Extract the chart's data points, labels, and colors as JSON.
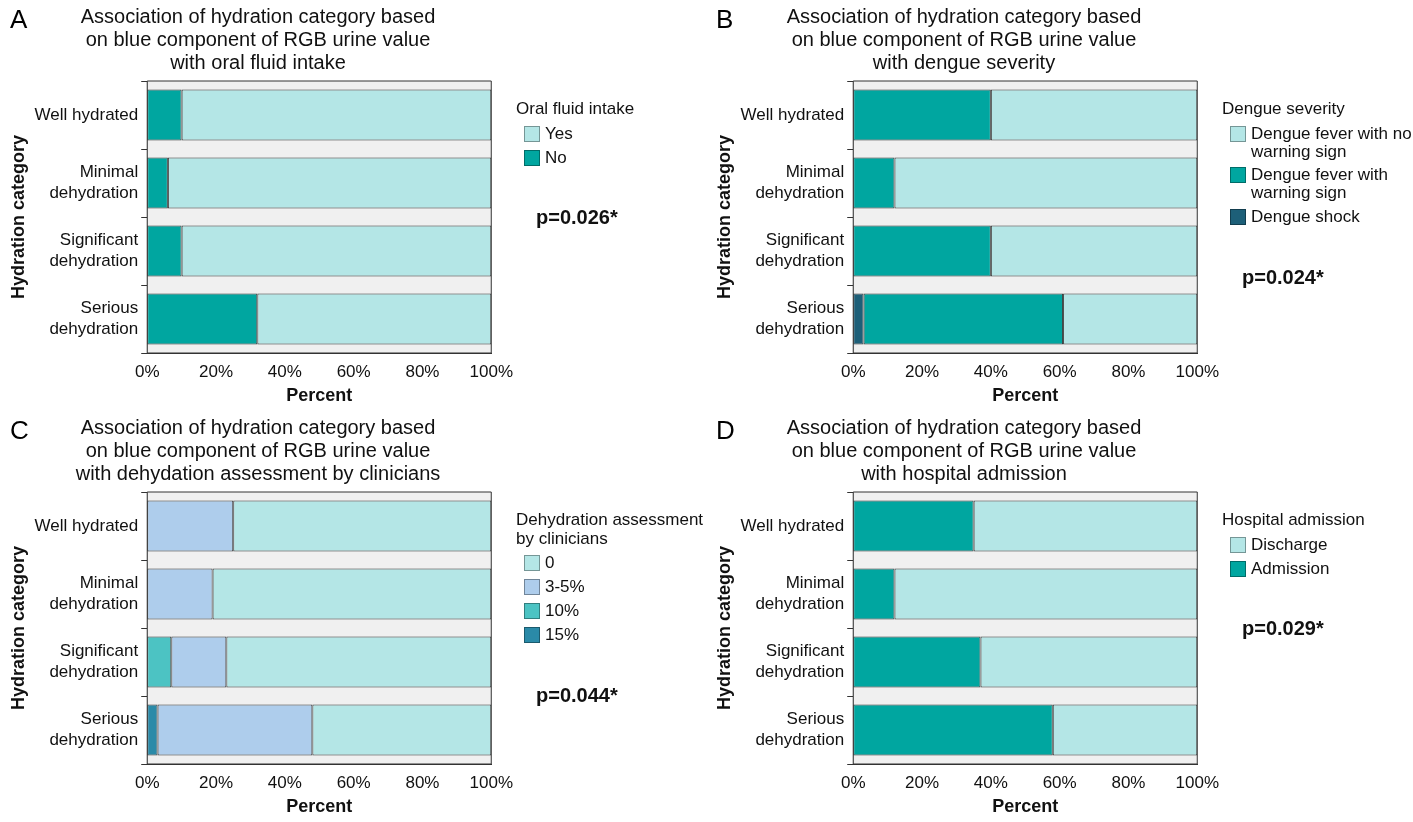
{
  "chart_data": [
    {
      "type": "bar",
      "title": "Association of hydration category based on blue component of RGB urine value with oral fluid intake",
      "xlabel": "Percent",
      "ylabel": "Hydration category",
      "legend_title": "Oral fluid intake",
      "annotations": [
        "A",
        "p=0.026*"
      ],
      "categories": [
        "Well hydrated",
        "Minimal dehydration",
        "Significant dehydration",
        "Serious dehydration"
      ],
      "series": [
        {
          "name": "No",
          "color": "#00a6a0",
          "values": [
            10,
            6,
            10,
            32
          ]
        },
        {
          "name": "Yes",
          "color": "#b4e6e6",
          "values": [
            90,
            94,
            90,
            68
          ]
        }
      ],
      "stacked": true,
      "orientation": "horizontal",
      "xlim": [
        0,
        100
      ],
      "xticks": [
        {
          "value": 0,
          "label": "0%"
        },
        {
          "value": 20,
          "label": "20%"
        },
        {
          "value": 40,
          "label": "40%"
        },
        {
          "value": 60,
          "label": "60%"
        },
        {
          "value": 80,
          "label": "80%"
        },
        {
          "value": 100,
          "label": "100%"
        }
      ],
      "grid": false,
      "legend": "right"
    },
    {
      "type": "bar",
      "title": "Association of hydration category based on blue component of RGB urine value with dengue severity",
      "xlabel": "Percent",
      "ylabel": "Hydration category",
      "legend_title": "Dengue severity",
      "annotations": [
        "B",
        "p=0.024*"
      ],
      "categories": [
        "Well hydrated",
        "Minimal dehydration",
        "Significant dehydration",
        "Serious dehydration"
      ],
      "series": [
        {
          "name": "Dengue shock",
          "color": "#1d5f78",
          "values": [
            0,
            0,
            0,
            3
          ]
        },
        {
          "name": "Dengue fever with warning sign",
          "color": "#00a6a0",
          "values": [
            40,
            12,
            40,
            58
          ]
        },
        {
          "name": "Dengue fever with no warning sign",
          "color": "#b4e6e6",
          "values": [
            60,
            88,
            60,
            39
          ]
        }
      ],
      "stacked": true,
      "orientation": "horizontal",
      "xlim": [
        0,
        100
      ],
      "xticks": [
        {
          "value": 0,
          "label": "0%"
        },
        {
          "value": 20,
          "label": "20%"
        },
        {
          "value": 40,
          "label": "40%"
        },
        {
          "value": 60,
          "label": "60%"
        },
        {
          "value": 80,
          "label": "80%"
        },
        {
          "value": 100,
          "label": "100%"
        }
      ],
      "grid": false,
      "legend": "right"
    },
    {
      "type": "bar",
      "title": "Association of hydration category based on blue component of RGB urine value with dehydation assessment by clinicians",
      "xlabel": "Percent",
      "ylabel": "Hydration category",
      "legend_title": "Dehydration assessment by clinicians",
      "annotations": [
        "C",
        "p=0.044*"
      ],
      "categories": [
        "Well hydrated",
        "Minimal dehydration",
        "Significant dehydration",
        "Serious dehydration"
      ],
      "series": [
        {
          "name": "15%",
          "color": "#2a8aa8",
          "values": [
            0,
            0,
            0,
            3
          ]
        },
        {
          "name": "10%",
          "color": "#4cc3c3",
          "values": [
            0,
            0,
            7,
            0
          ]
        },
        {
          "name": "3-5%",
          "color": "#aecdec",
          "values": [
            25,
            19,
            16,
            45
          ]
        },
        {
          "name": "0",
          "color": "#b4e6e6",
          "values": [
            75,
            81,
            77,
            52
          ]
        }
      ],
      "stacked": true,
      "orientation": "horizontal",
      "xlim": [
        0,
        100
      ],
      "xticks": [
        {
          "value": 0,
          "label": "0%"
        },
        {
          "value": 20,
          "label": "20%"
        },
        {
          "value": 40,
          "label": "40%"
        },
        {
          "value": 60,
          "label": "60%"
        },
        {
          "value": 80,
          "label": "80%"
        },
        {
          "value": 100,
          "label": "100%"
        }
      ],
      "grid": false,
      "legend": "right"
    },
    {
      "type": "bar",
      "title": "Association of hydration category based on blue component of RGB urine value with hospital admission",
      "xlabel": "Percent",
      "ylabel": "Hydration category",
      "legend_title": "Hospital admission",
      "annotations": [
        "D",
        "p=0.029*"
      ],
      "categories": [
        "Well hydrated",
        "Minimal dehydration",
        "Significant dehydration",
        "Serious dehydration"
      ],
      "series": [
        {
          "name": "Admission",
          "color": "#00a6a0",
          "values": [
            35,
            12,
            37,
            58
          ]
        },
        {
          "name": "Discharge",
          "color": "#b4e6e6",
          "values": [
            65,
            88,
            63,
            42
          ]
        }
      ],
      "stacked": true,
      "orientation": "horizontal",
      "xlim": [
        0,
        100
      ],
      "xticks": [
        {
          "value": 0,
          "label": "0%"
        },
        {
          "value": 20,
          "label": "20%"
        },
        {
          "value": 40,
          "label": "40%"
        },
        {
          "value": 60,
          "label": "60%"
        },
        {
          "value": 80,
          "label": "80%"
        },
        {
          "value": 100,
          "label": "100%"
        }
      ],
      "grid": false,
      "legend": "right"
    }
  ]
}
